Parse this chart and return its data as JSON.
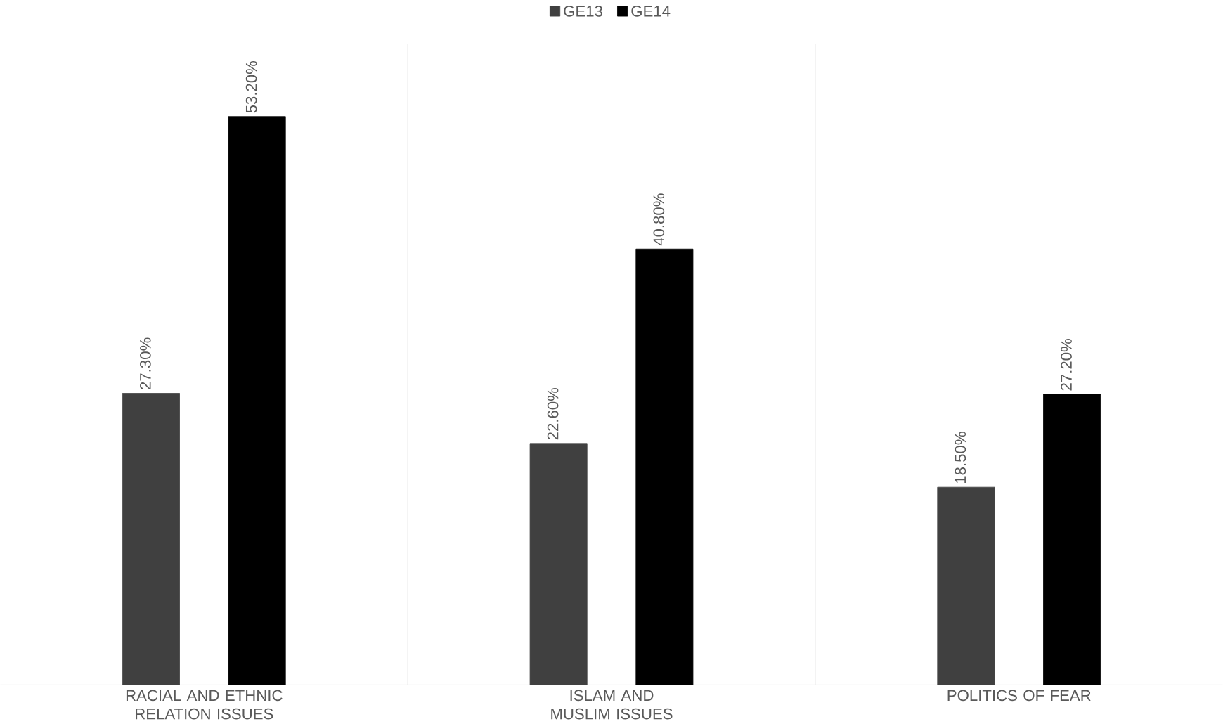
{
  "chart_data": {
    "type": "bar",
    "categories": [
      "RACIAL AND ETHNIC RELATION ISSUES",
      "ISLAM AND MUSLIM ISSUES",
      "POLITICS OF FEAR"
    ],
    "series": [
      {
        "name": "GE13",
        "color": "#404040",
        "values": [
          27.3,
          22.6,
          18.5
        ],
        "value_labels": [
          "27.30%",
          "22.60%",
          "18.50%"
        ]
      },
      {
        "name": "GE14",
        "color": "#000000",
        "values": [
          53.2,
          40.8,
          27.2
        ],
        "value_labels": [
          "53.20%",
          "40.80%",
          "27.20%"
        ]
      }
    ],
    "ylim": [
      0,
      60
    ],
    "tick_labels": "x",
    "grid": "x",
    "legend": "top"
  }
}
